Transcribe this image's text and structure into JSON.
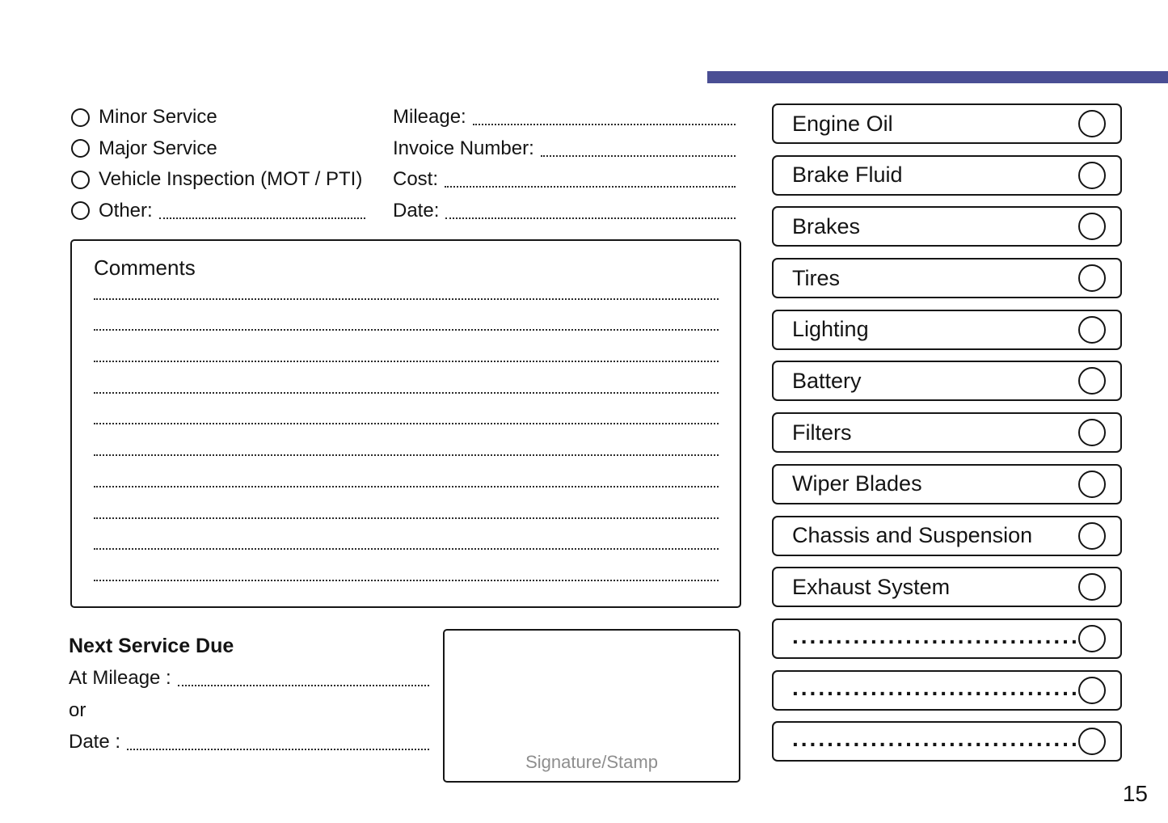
{
  "page": {
    "number": "15",
    "accent_color": "#4a4e94"
  },
  "service_types": {
    "items": [
      {
        "label": "Minor Service",
        "has_line": false
      },
      {
        "label": "Major Service",
        "has_line": false
      },
      {
        "label": "Vehicle Inspection (MOT / PTI)",
        "has_line": false
      },
      {
        "label": "Other:",
        "has_line": true
      }
    ]
  },
  "fields": {
    "items": [
      {
        "label": "Mileage:"
      },
      {
        "label": "Invoice Number:"
      },
      {
        "label": "Cost:"
      },
      {
        "label": "Date:"
      }
    ]
  },
  "comments": {
    "title": "Comments",
    "line_count": 10
  },
  "next_service": {
    "title": "Next Service Due",
    "at_mileage_label": "At Mileage :",
    "or_label": "or",
    "date_label": "Date :"
  },
  "signature": {
    "label": "Signature/Stamp"
  },
  "checklist": {
    "items": [
      {
        "label": "Engine Oil",
        "dotted": false
      },
      {
        "label": "Brake Fluid",
        "dotted": false
      },
      {
        "label": "Brakes",
        "dotted": false
      },
      {
        "label": "Tires",
        "dotted": false
      },
      {
        "label": "Lighting",
        "dotted": false
      },
      {
        "label": "Battery",
        "dotted": false
      },
      {
        "label": "Filters",
        "dotted": false
      },
      {
        "label": "Wiper Blades",
        "dotted": false
      },
      {
        "label": "Chassis and Suspension",
        "dotted": false
      },
      {
        "label": "Exhaust System",
        "dotted": false
      },
      {
        "label": "........................................",
        "dotted": true
      },
      {
        "label": "........................................",
        "dotted": true
      },
      {
        "label": "........................................",
        "dotted": true
      }
    ]
  }
}
